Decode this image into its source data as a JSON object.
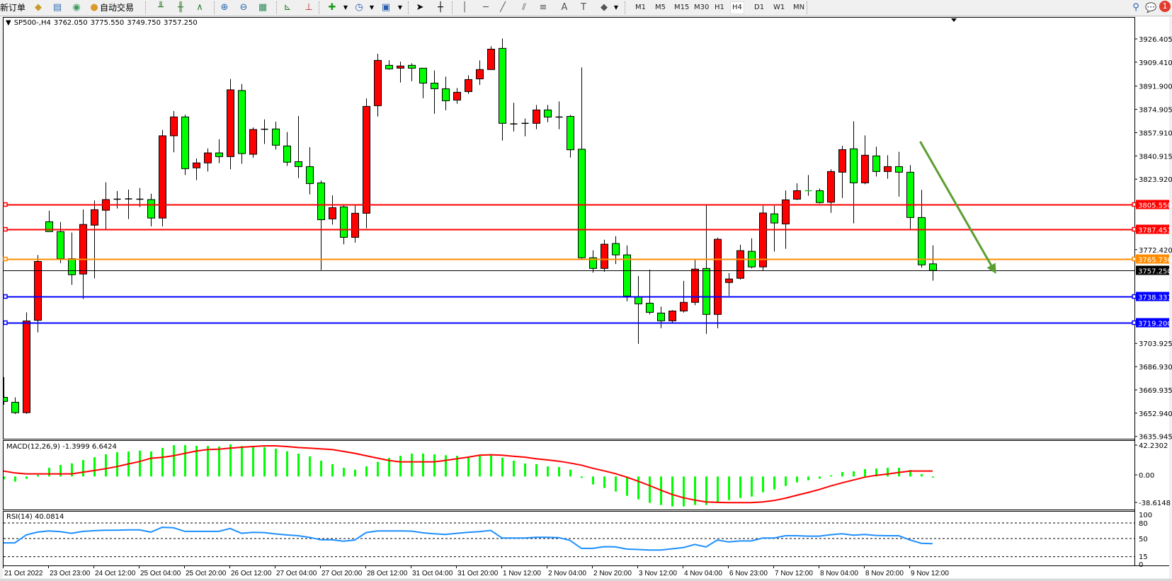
{
  "toolbar": {
    "new_order_label": "新订单",
    "auto_trading_label": "自动交易",
    "timeframes": [
      "M1",
      "M5",
      "M15",
      "M30",
      "H1",
      "H4",
      "D1",
      "W1",
      "MN"
    ],
    "active_timeframe": "H4",
    "notification_count": "1",
    "icons": [
      "gold-bars-icon",
      "market-watch-icon",
      "signals-icon",
      "auto-trading-icon",
      "bar-chart-icon",
      "candlestick-chart-icon",
      "line-chart-icon",
      "zoom-in-icon",
      "zoom-out-icon",
      "tile-windows-icon",
      "autoscroll-icon",
      "chart-shift-icon",
      "indicators-icon",
      "periods-icon",
      "templates-icon",
      "cursor-icon",
      "crosshair-icon",
      "vertical-line-icon",
      "horizontal-line-icon",
      "trendline-icon",
      "equidistant-channel-icon",
      "fibonacci-icon",
      "text-icon",
      "text-label-icon",
      "shapes-icon",
      "search-icon",
      "notification-icon"
    ]
  },
  "header": {
    "symbol": "SP500-,H4",
    "open": "3762.050",
    "high": "3775.550",
    "low": "3749.750",
    "close": "3757.250"
  },
  "colors": {
    "bull": "#ff0000",
    "bear": "#00ff00",
    "outline": "#000000",
    "background": "#ffffff",
    "macd_histogram": "#00ff00",
    "macd_signal": "#ff0000",
    "rsi": "#1e90ff",
    "arrow": "#5a9e2f"
  },
  "chart_data": {
    "type": "candlestick",
    "symbol": "SP500-",
    "timeframe": "H4",
    "ohlc_order": [
      "open",
      "high",
      "low",
      "close"
    ],
    "ohlc": [
      [
        3664.5,
        3679.3,
        3659.1,
        3661.5
      ],
      [
        3660.9,
        3664.5,
        3652.2,
        3653.3
      ],
      [
        3653.3,
        3726.6,
        3652.5,
        3720.3
      ],
      [
        3720.8,
        3768.5,
        3712.0,
        3763.8
      ],
      [
        3792.8,
        3800.9,
        3785.6,
        3785.6
      ],
      [
        3785.6,
        3792.6,
        3762.6,
        3765.8
      ],
      [
        3765.8,
        3784.9,
        3746.7,
        3754.1
      ],
      [
        3754.6,
        3801.8,
        3736.3,
        3790.8
      ],
      [
        3790.3,
        3808.4,
        3751.4,
        3801.6
      ],
      [
        3801.2,
        3821.6,
        3786.5,
        3809.0
      ],
      [
        3809.3,
        3815.3,
        3802.5,
        3809.3
      ],
      [
        3809.5,
        3816.3,
        3794.8,
        3809.5
      ],
      [
        3809.3,
        3817.4,
        3803.6,
        3809.3
      ],
      [
        3809.0,
        3813.3,
        3789.4,
        3795.5
      ],
      [
        3795.5,
        3859.9,
        3789.4,
        3855.6
      ],
      [
        3855.6,
        3873.7,
        3843.5,
        3869.4
      ],
      [
        3869.4,
        3871.0,
        3826.9,
        3831.6
      ],
      [
        3832.2,
        3839.0,
        3823.2,
        3835.8
      ],
      [
        3835.8,
        3846.4,
        3829.5,
        3843.1
      ],
      [
        3843.1,
        3853.0,
        3835.6,
        3840.4
      ],
      [
        3840.4,
        3897.1,
        3831.1,
        3889.2
      ],
      [
        3888.7,
        3893.5,
        3835.2,
        3842.6
      ],
      [
        3842.1,
        3861.7,
        3839.6,
        3860.2
      ],
      [
        3860.4,
        3867.6,
        3849.6,
        3860.4
      ],
      [
        3860.6,
        3865.9,
        3845.5,
        3848.7
      ],
      [
        3848.2,
        3858.3,
        3833.6,
        3836.3
      ],
      [
        3836.7,
        3870.0,
        3824.7,
        3833.1
      ],
      [
        3833.1,
        3847.3,
        3812.8,
        3820.7
      ],
      [
        3821.2,
        3823.0,
        3757.5,
        3794.3
      ],
      [
        3794.9,
        3812.1,
        3790.7,
        3803.1
      ],
      [
        3803.7,
        3804.9,
        3776.3,
        3781.4
      ],
      [
        3781.4,
        3804.9,
        3777.6,
        3799.0
      ],
      [
        3799.0,
        3882.9,
        3788.0,
        3877.1
      ],
      [
        3877.6,
        3915.5,
        3869.7,
        3910.7
      ],
      [
        3907.1,
        3910.9,
        3903.8,
        3904.5
      ],
      [
        3905.0,
        3909.8,
        3894.5,
        3906.6
      ],
      [
        3907.1,
        3908.6,
        3895.5,
        3905.0
      ],
      [
        3905.0,
        3905.0,
        3883.1,
        3894.1
      ],
      [
        3894.1,
        3903.4,
        3871.7,
        3890.0
      ],
      [
        3890.0,
        3898.8,
        3874.3,
        3881.2
      ],
      [
        3881.7,
        3890.5,
        3879.0,
        3887.4
      ],
      [
        3887.9,
        3899.8,
        3886.2,
        3896.7
      ],
      [
        3897.2,
        3910.7,
        3892.8,
        3904.0
      ],
      [
        3904.0,
        3921.0,
        3904.0,
        3918.9
      ],
      [
        3919.5,
        3926.7,
        3852.1,
        3864.7
      ],
      [
        3864.3,
        3879.7,
        3858.8,
        3864.3
      ],
      [
        3864.7,
        3868.3,
        3855.2,
        3864.7
      ],
      [
        3864.7,
        3878.1,
        3860.4,
        3874.5
      ],
      [
        3874.5,
        3878.1,
        3865.5,
        3869.3
      ],
      [
        3869.3,
        3880.7,
        3860.4,
        3869.3
      ],
      [
        3869.8,
        3870.9,
        3839.7,
        3845.4
      ],
      [
        3845.8,
        3905.5,
        3765.7,
        3766.5
      ],
      [
        3766.5,
        3771.9,
        3755.6,
        3758.7
      ],
      [
        3758.7,
        3779.7,
        3756.2,
        3776.4
      ],
      [
        3776.9,
        3782.2,
        3761.9,
        3768.6
      ],
      [
        3768.6,
        3775.5,
        3734.7,
        3738.5
      ],
      [
        3738.0,
        3753.2,
        3703.6,
        3732.8
      ],
      [
        3733.3,
        3757.9,
        3725.1,
        3726.6
      ],
      [
        3726.1,
        3730.9,
        3715.0,
        3720.4
      ],
      [
        3720.4,
        3728.2,
        3719.2,
        3727.6
      ],
      [
        3727.6,
        3749.6,
        3726.4,
        3733.9
      ],
      [
        3733.9,
        3765.3,
        3731.8,
        3758.2
      ],
      [
        3758.7,
        3805.5,
        3710.9,
        3725.1
      ],
      [
        3725.1,
        3781.2,
        3715.0,
        3780.0
      ],
      [
        3748.4,
        3755.3,
        3738.6,
        3751.0
      ],
      [
        3751.5,
        3776.0,
        3750.5,
        3771.7
      ],
      [
        3771.2,
        3780.7,
        3758.7,
        3759.8
      ],
      [
        3759.8,
        3804.5,
        3757.2,
        3799.2
      ],
      [
        3798.6,
        3804.5,
        3771.0,
        3791.9
      ],
      [
        3791.2,
        3815.7,
        3773.0,
        3808.8
      ],
      [
        3809.3,
        3820.9,
        3808.7,
        3815.5
      ],
      [
        3815.5,
        3826.9,
        3811.8,
        3815.5
      ],
      [
        3815.5,
        3817.1,
        3806.1,
        3806.8
      ],
      [
        3807.1,
        3831.2,
        3799.3,
        3829.5
      ],
      [
        3829.0,
        3848.3,
        3810.2,
        3845.5
      ],
      [
        3846.1,
        3866.2,
        3791.6,
        3821.2
      ],
      [
        3821.2,
        3855.9,
        3820.2,
        3841.4
      ],
      [
        3840.9,
        3847.6,
        3825.9,
        3829.5
      ],
      [
        3829.5,
        3841.4,
        3824.2,
        3833.1
      ],
      [
        3833.1,
        3843.9,
        3811.2,
        3829.0
      ],
      [
        3829.0,
        3834.2,
        3787.6,
        3795.9
      ],
      [
        3795.9,
        3816.1,
        3759.2,
        3761.3
      ],
      [
        3762.05,
        3775.55,
        3749.75,
        3757.25
      ]
    ],
    "price_ticks": [
      "3926.405",
      "3909.410",
      "3891.900",
      "3874.905",
      "3857.910",
      "3840.915",
      "3823.920",
      "3772.420",
      "3703.925",
      "3686.930",
      "3669.935",
      "3652.940",
      "3635.945"
    ],
    "price_range": [
      3635.945,
      3926.405
    ],
    "time_labels": [
      "21 Oct 2022",
      "23 Oct 23:00",
      "24 Oct 12:00",
      "25 Oct 04:00",
      "25 Oct 20:00",
      "26 Oct 12:00",
      "27 Oct 04:00",
      "27 Oct 20:00",
      "28 Oct 12:00",
      "31 Oct 04:00",
      "31 Oct 20:00",
      "1 Nov 12:00",
      "2 Nov 04:00",
      "2 Nov 20:00",
      "3 Nov 12:00",
      "4 Nov 04:00",
      "6 Nov 23:00",
      "7 Nov 12:00",
      "8 Nov 04:00",
      "8 Nov 20:00",
      "9 Nov 12:00"
    ],
    "horizontal_lines": [
      {
        "price": 3805.55,
        "label": "3805.550",
        "color": "#ff0000"
      },
      {
        "price": 3787.453,
        "label": "3787.453",
        "color": "#ff0000"
      },
      {
        "price": 3765.736,
        "label": "3765.736",
        "color": "#ff8c00"
      },
      {
        "price": 3757.25,
        "label": "3757.250",
        "color": "#000000"
      },
      {
        "price": 3738.331,
        "label": "3738.331",
        "color": "#0000ff"
      },
      {
        "price": 3719.2,
        "label": "3719.200",
        "color": "#0000ff"
      }
    ],
    "arrow": {
      "from": {
        "bar": 80.9,
        "price": 3851.4
      },
      "to": {
        "bar": 87.6,
        "price": 3754.7
      },
      "color": "#5a9e2f"
    },
    "macd": {
      "label": "MACD(12,26,9) -1.3999 6.6424",
      "axis_labels": [
        "42.2302",
        "0.00",
        "-38.6148"
      ],
      "range": [
        -38.6148,
        42.2302
      ],
      "histogram": [
        -3.4,
        -6.3,
        -2.9,
        2.0,
        10.6,
        14.0,
        16.0,
        20.1,
        23.5,
        26.9,
        29.5,
        30.4,
        31.5,
        30.4,
        34.7,
        38.1,
        38.1,
        37.2,
        37.2,
        36.4,
        39.0,
        37.0,
        36.7,
        35.8,
        33.8,
        30.7,
        27.8,
        24.4,
        19.2,
        14.9,
        10.6,
        8.3,
        12.3,
        17.8,
        22.6,
        25.2,
        27.8,
        27.8,
        26.9,
        25.8,
        25.2,
        24.4,
        25.8,
        25.8,
        22.9,
        19.2,
        15.8,
        14.9,
        12.3,
        11.5,
        8.3,
        -1.7,
        -9.7,
        -14.0,
        -18.3,
        -23.5,
        -27.8,
        -32.1,
        -34.7,
        -36.4,
        -36.4,
        -34.7,
        -34.7,
        -32.1,
        -28.7,
        -26.1,
        -24.4,
        -19.2,
        -15.8,
        -11.5,
        -7.2,
        -4.6,
        -2.6,
        1.4,
        5.4,
        6.3,
        8.9,
        9.7,
        10.6,
        10.6,
        8.0,
        2.9,
        -1.4
      ],
      "signal": [
        6.6,
        4.3,
        3.2,
        3.2,
        3.2,
        3.2,
        3.2,
        5.2,
        7.2,
        9.5,
        12.0,
        15.2,
        18.1,
        22.1,
        23.2,
        25.2,
        28.1,
        30.9,
        32.7,
        33.2,
        34.4,
        35.5,
        36.4,
        37.2,
        37.2,
        36.4,
        35.2,
        34.4,
        33.5,
        32.7,
        30.4,
        28.1,
        25.2,
        22.3,
        19.5,
        17.8,
        17.8,
        17.8,
        17.8,
        19.5,
        21.5,
        23.5,
        25.8,
        26.4,
        25.8,
        24.6,
        23.5,
        21.5,
        20.1,
        18.6,
        16.3,
        13.8,
        10.0,
        6.9,
        3.4,
        -0.9,
        -5.7,
        -10.9,
        -16.6,
        -21.8,
        -25.8,
        -28.7,
        -30.9,
        -31.5,
        -31.8,
        -31.8,
        -31.8,
        -30.9,
        -29.2,
        -26.4,
        -22.9,
        -19.5,
        -15.8,
        -11.5,
        -7.7,
        -4.3,
        -0.9,
        1.4,
        2.9,
        4.9,
        6.6,
        6.6,
        6.6
      ]
    },
    "rsi": {
      "label": "RSI(14) 40.0814",
      "levels": [
        80,
        50,
        15
      ],
      "axis_labels": [
        "100",
        "80",
        "50",
        "15",
        "0"
      ],
      "range": [
        0,
        100
      ],
      "values": [
        41.7,
        41.7,
        56.9,
        62.4,
        64.8,
        63.4,
        60.1,
        63.8,
        65.2,
        66.1,
        66.1,
        66.6,
        66.6,
        62.4,
        71.7,
        70.7,
        63.8,
        63.8,
        63.8,
        63.8,
        69.4,
        60.1,
        62.0,
        61.5,
        58.8,
        56.9,
        55.5,
        52.3,
        47.7,
        47.7,
        44.9,
        47.2,
        61.5,
        64.8,
        64.8,
        64.8,
        64.3,
        61.1,
        59.2,
        57.8,
        60.1,
        62.0,
        63.4,
        65.7,
        50.9,
        50.9,
        50.9,
        52.3,
        52.3,
        51.8,
        46.3,
        31.1,
        31.1,
        34.3,
        33.9,
        29.7,
        28.8,
        27.9,
        27.9,
        30.2,
        32.5,
        38.5,
        33.9,
        47.2,
        43.5,
        45.4,
        45.4,
        50.9,
        50.9,
        55.5,
        55.5,
        54.6,
        54.6,
        57.4,
        59.2,
        56.5,
        57.8,
        56.0,
        55.5,
        55.5,
        47.2,
        40.8,
        40.08
      ]
    }
  }
}
